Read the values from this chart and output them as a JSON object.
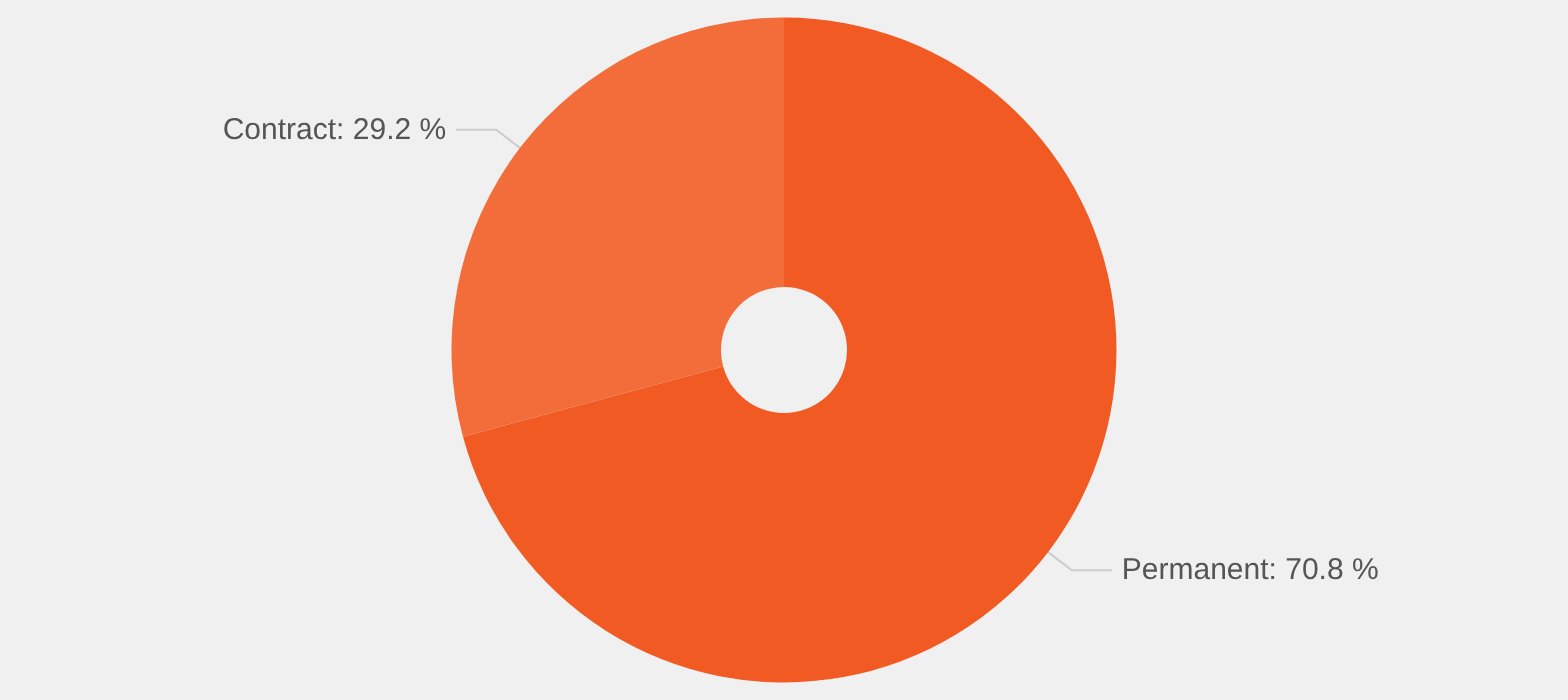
{
  "chart_data": {
    "type": "donut",
    "categories": [
      "Permanent",
      "Contract"
    ],
    "values": [
      70.8,
      29.2
    ],
    "value_labels": [
      "70.8 %",
      "29.2 %"
    ],
    "colors": [
      "#f15a22",
      "#f26d3a"
    ],
    "legend": false
  }
}
